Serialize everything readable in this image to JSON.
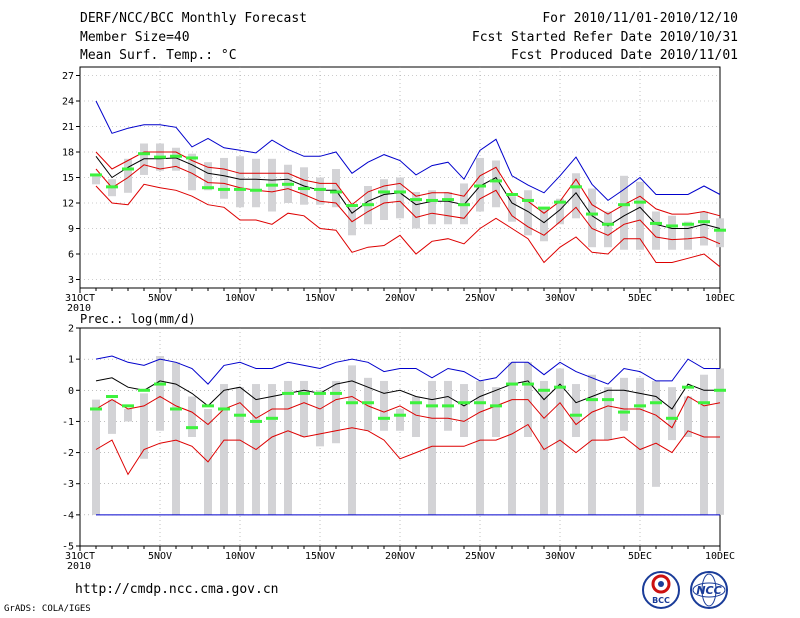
{
  "header": {
    "title": "DERF/NCC/BCC Monthly Forecast",
    "member_size": "Member Size=40",
    "variable": "Mean Surf. Temp.: °C",
    "period": "For 2010/11/01-2010/12/10",
    "started": "Fcst Started Refer Date 2010/10/31",
    "produced": "Fcst Produced Date 2010/11/01"
  },
  "footer": {
    "url": "http://cmdp.ncc.cma.gov.cn",
    "grads": "GrADS: COLA/IGES",
    "logo1": "BCC",
    "logo2": "NCC"
  },
  "colors": {
    "box": "#d3d3d6",
    "obs": "#3df23d",
    "max": "#0000cc",
    "mean": "#000000",
    "min": "#dd0000",
    "axis": "#000000",
    "grid": "#999999"
  },
  "chart_data": [
    {
      "type": "line",
      "title": "Mean Surf. Temp.: °C",
      "ylim": [
        2,
        28
      ],
      "yticks": [
        "3",
        "6",
        "9",
        "12",
        "15",
        "18",
        "21",
        "24",
        "27"
      ],
      "xlim": [
        0,
        40
      ],
      "xtick_labels": [
        {
          "day": 0,
          "text": "31OCT",
          "sub": "2010"
        },
        {
          "day": 5,
          "text": "5NOV"
        },
        {
          "day": 10,
          "text": "10NOV"
        },
        {
          "day": 15,
          "text": "15NOV"
        },
        {
          "day": 20,
          "text": "20NOV"
        },
        {
          "day": 25,
          "text": "25NOV"
        },
        {
          "day": 30,
          "text": "30NOV"
        },
        {
          "day": 35,
          "text": "5DEC"
        },
        {
          "day": 40,
          "text": "10DEC"
        }
      ],
      "days": [
        1,
        2,
        3,
        4,
        5,
        6,
        7,
        8,
        9,
        10,
        11,
        12,
        13,
        14,
        15,
        16,
        17,
        18,
        19,
        20,
        21,
        22,
        23,
        24,
        25,
        26,
        27,
        28,
        29,
        30,
        31,
        32,
        33,
        34,
        35,
        36,
        37,
        38,
        39,
        40
      ],
      "series": [
        {
          "name": "max",
          "values": [
            24,
            20.2,
            20.8,
            21.2,
            21.2,
            20.9,
            18.6,
            19.6,
            18.5,
            18.2,
            17.9,
            19.4,
            18.3,
            17.5,
            17.5,
            18,
            15.5,
            16.8,
            17.7,
            17,
            15.3,
            16.4,
            16.8,
            14.8,
            18.2,
            19.5,
            15.2,
            14.1,
            13.2,
            15.2,
            17.4,
            14.2,
            12.3,
            13.6,
            15,
            13,
            13,
            13,
            14,
            13
          ]
        },
        {
          "name": "p90",
          "values": [
            18,
            16,
            17,
            18,
            18,
            18,
            17,
            16.2,
            16,
            15.5,
            15.5,
            15.5,
            15.5,
            14.7,
            14.3,
            14.3,
            11.8,
            13.3,
            14,
            14.3,
            12.8,
            13.2,
            13.2,
            12.8,
            15.2,
            16.2,
            13.2,
            12.2,
            10.8,
            12.2,
            14.8,
            11.8,
            10.7,
            11.8,
            12.8,
            11.3,
            10.7,
            10.7,
            11,
            10.5
          ]
        },
        {
          "name": "mean",
          "values": [
            17.5,
            15,
            16.2,
            17.2,
            17.2,
            17.3,
            16.5,
            15.5,
            15.2,
            14.8,
            14.8,
            14.7,
            14.8,
            14,
            13.5,
            13.5,
            10.8,
            12.2,
            13,
            13.2,
            11.8,
            12.2,
            12.2,
            11.8,
            14,
            15,
            12,
            11,
            9.7,
            11.2,
            13.2,
            10.5,
            9.3,
            10.5,
            11.5,
            9.5,
            9,
            9,
            9.5,
            9
          ]
        },
        {
          "name": "p10",
          "values": [
            16,
            13.8,
            15,
            16.5,
            16,
            16.3,
            15.5,
            14.4,
            14.3,
            13.8,
            13.5,
            13.3,
            13.7,
            13,
            12.2,
            12,
            9.8,
            11,
            12,
            12.2,
            10.3,
            10.8,
            10.5,
            10.2,
            12.5,
            13.5,
            10.5,
            9.2,
            8.2,
            9.8,
            11.5,
            9,
            8.2,
            9.5,
            10,
            8,
            7.7,
            7.8,
            8,
            7.2
          ]
        },
        {
          "name": "min",
          "values": [
            14,
            12,
            11.8,
            14.2,
            13.8,
            13.5,
            12.8,
            11.8,
            11.5,
            10,
            10,
            9.5,
            10.8,
            10.5,
            9,
            8.8,
            6.2,
            6.8,
            7,
            8.2,
            6,
            7.5,
            7.8,
            7.2,
            9,
            10.2,
            9,
            7.8,
            5,
            6.8,
            8,
            6.2,
            6,
            7.8,
            7.8,
            5,
            5,
            5.5,
            6,
            4.5
          ]
        }
      ],
      "boxes": {
        "low": [
          14.2,
          12.8,
          13.2,
          15.3,
          15.8,
          15.8,
          13.5,
          13.5,
          12.5,
          11.5,
          11.5,
          11,
          12,
          11.8,
          11.8,
          11.5,
          8.2,
          9.5,
          10,
          10.2,
          9,
          9.5,
          9.5,
          9.5,
          11,
          11.5,
          9.8,
          8.2,
          7.5,
          9.5,
          10.2,
          6.8,
          6.8,
          6.5,
          6.5,
          6.5,
          6.5,
          6.5,
          7,
          6.8
        ],
        "high": [
          15.2,
          14.8,
          17.2,
          19,
          19,
          18.5,
          17.8,
          16.8,
          17.3,
          17.5,
          17.2,
          17.2,
          16.5,
          16.2,
          15,
          16,
          11.5,
          14,
          14.8,
          15,
          13.3,
          13.5,
          13.3,
          14.3,
          17.3,
          17,
          12.8,
          13.5,
          11.5,
          12.5,
          15.5,
          13.7,
          11,
          15.2,
          14.5,
          11,
          10.5,
          9.8,
          11,
          10.2
        ]
      },
      "observed": [
        15.3,
        13.9,
        16,
        17.8,
        17.4,
        17.5,
        17.3,
        13.8,
        13.6,
        13.6,
        13.5,
        14.1,
        14.2,
        13.7,
        13.6,
        13.3,
        11.7,
        11.8,
        13.3,
        13.3,
        12.4,
        12.3,
        12.4,
        11.8,
        14,
        14.6,
        13,
        12.3,
        11.4,
        12.1,
        13.9,
        10.7,
        9.5,
        11.8,
        12.1,
        9.6,
        9.3,
        9.5,
        9.8,
        8.8
      ]
    },
    {
      "type": "line",
      "title": "Prec.: log(mm/d)",
      "ylim": [
        -5,
        2
      ],
      "yticks": [
        "-5",
        "-4",
        "-3",
        "-2",
        "-1",
        "0",
        "1",
        "2"
      ],
      "xlim": [
        0,
        40
      ],
      "xtick_labels": [
        {
          "day": 0,
          "text": "31OCT",
          "sub": "2010"
        },
        {
          "day": 5,
          "text": "5NOV"
        },
        {
          "day": 10,
          "text": "10NOV"
        },
        {
          "day": 15,
          "text": "15NOV"
        },
        {
          "day": 20,
          "text": "20NOV"
        },
        {
          "day": 25,
          "text": "25NOV"
        },
        {
          "day": 30,
          "text": "30NOV"
        },
        {
          "day": 35,
          "text": "5DEC"
        },
        {
          "day": 40,
          "text": "10DEC"
        }
      ],
      "days": [
        1,
        2,
        3,
        4,
        5,
        6,
        7,
        8,
        9,
        10,
        11,
        12,
        13,
        14,
        15,
        16,
        17,
        18,
        19,
        20,
        21,
        22,
        23,
        24,
        25,
        26,
        27,
        28,
        29,
        30,
        31,
        32,
        33,
        34,
        35,
        36,
        37,
        38,
        39,
        40
      ],
      "series": [
        {
          "name": "max",
          "values": [
            1,
            1.1,
            0.9,
            0.8,
            1,
            0.9,
            0.7,
            0.2,
            0.8,
            0.9,
            0.7,
            0.7,
            0.9,
            0.8,
            0.7,
            0.9,
            1,
            0.9,
            0.6,
            0.7,
            0.7,
            0.4,
            0.7,
            0.6,
            0.3,
            0.4,
            0.9,
            0.9,
            0.5,
            0.9,
            0.6,
            0.4,
            0.2,
            0.7,
            0.6,
            0.3,
            0.3,
            1,
            0.7,
            0.7
          ]
        },
        {
          "name": "mean",
          "values": [
            0.3,
            0.4,
            0.1,
            0,
            0.3,
            0.2,
            -0.1,
            -0.5,
            0,
            0.1,
            -0.3,
            -0.2,
            -0.1,
            0,
            -0.1,
            0.2,
            0.3,
            0.1,
            -0.1,
            0,
            -0.2,
            -0.3,
            -0.2,
            -0.5,
            -0.2,
            0,
            0.2,
            0.3,
            -0.3,
            0.2,
            -0.4,
            -0.2,
            0,
            0,
            -0.1,
            -0.2,
            -0.6,
            0.2,
            0,
            0
          ]
        },
        {
          "name": "p10",
          "values": [
            -0.6,
            -0.3,
            -0.6,
            -0.5,
            -0.2,
            -0.5,
            -0.7,
            -1.1,
            -0.6,
            -0.4,
            -0.9,
            -0.6,
            -0.6,
            -0.4,
            -0.6,
            -0.3,
            -0.2,
            -0.5,
            -0.7,
            -0.5,
            -0.8,
            -0.9,
            -0.9,
            -1,
            -0.7,
            -0.5,
            -0.3,
            -0.3,
            -0.9,
            -0.4,
            -1.1,
            -0.7,
            -0.5,
            -0.6,
            -0.6,
            -0.8,
            -1.2,
            -0.2,
            -0.5,
            -0.4
          ]
        },
        {
          "name": "min",
          "values": [
            -1.9,
            -1.6,
            -2.7,
            -1.9,
            -1.7,
            -1.6,
            -1.8,
            -2.3,
            -1.6,
            -1.6,
            -1.9,
            -1.5,
            -1.3,
            -1.5,
            -1.4,
            -1.3,
            -1.2,
            -1.3,
            -1.6,
            -2.2,
            -2,
            -1.8,
            -1.8,
            -1.8,
            -1.6,
            -1.6,
            -1.4,
            -1.1,
            -1.9,
            -1.6,
            -2,
            -1.6,
            -1.6,
            -1.5,
            -1.9,
            -1.7,
            -2,
            -1.3,
            -1.5,
            -1.5
          ]
        },
        {
          "name": "floor",
          "values": [
            -4,
            -4,
            -4,
            -4,
            -4,
            -4,
            -4,
            -4,
            -4,
            -4,
            -4,
            -4,
            -4,
            -4,
            -4,
            -4,
            -4,
            -4,
            -4,
            -4,
            -4,
            -4,
            -4,
            -4,
            -4,
            -4,
            -4,
            -4,
            -4,
            -4,
            -4,
            -4,
            -4,
            -4,
            -4,
            -4,
            -4,
            -4,
            -4,
            -4
          ]
        }
      ],
      "boxes": {
        "low": [
          -4,
          -1.4,
          -1,
          -2.2,
          -1.3,
          -4,
          -1.5,
          -4,
          -4,
          -4,
          -4,
          -4,
          -4,
          -1.5,
          -1.8,
          -1.7,
          -4,
          -1.3,
          -1.3,
          -1.3,
          -1.5,
          -4,
          -1.3,
          -1.5,
          -4,
          -1.5,
          -4,
          -1.5,
          -4,
          -4,
          -1.5,
          -4,
          -1.6,
          -1.3,
          -4,
          -3.1,
          -1.6,
          -1.5,
          -4,
          -4
        ],
        "high": [
          -0.3,
          -0.3,
          -0.6,
          -0.1,
          1.1,
          0.9,
          -0.2,
          -0.6,
          0.2,
          0.1,
          0.2,
          0.2,
          0.3,
          0.3,
          0,
          0.3,
          0.8,
          0.4,
          0.3,
          -0.6,
          -0.2,
          0.3,
          0.3,
          0.2,
          0.3,
          0.1,
          0.9,
          0.9,
          0.3,
          0.7,
          0.2,
          0.5,
          0.1,
          0.4,
          0.4,
          0.3,
          0.1,
          -0.2,
          0.5,
          0.7
        ]
      },
      "observed": [
        -0.6,
        -0.2,
        -0.5,
        0,
        0.2,
        -0.6,
        -1.2,
        -0.5,
        -0.6,
        -0.8,
        -1,
        -0.9,
        -0.1,
        -0.1,
        -0.1,
        -0.1,
        -0.4,
        -0.4,
        -0.9,
        -0.8,
        -0.4,
        -0.5,
        -0.5,
        -0.4,
        -0.4,
        -0.5,
        0.2,
        0.2,
        0,
        0.1,
        -0.8,
        -0.3,
        -0.3,
        -0.7,
        -0.5,
        -0.4,
        -0.9,
        0.1,
        -0.4,
        0
      ]
    }
  ]
}
